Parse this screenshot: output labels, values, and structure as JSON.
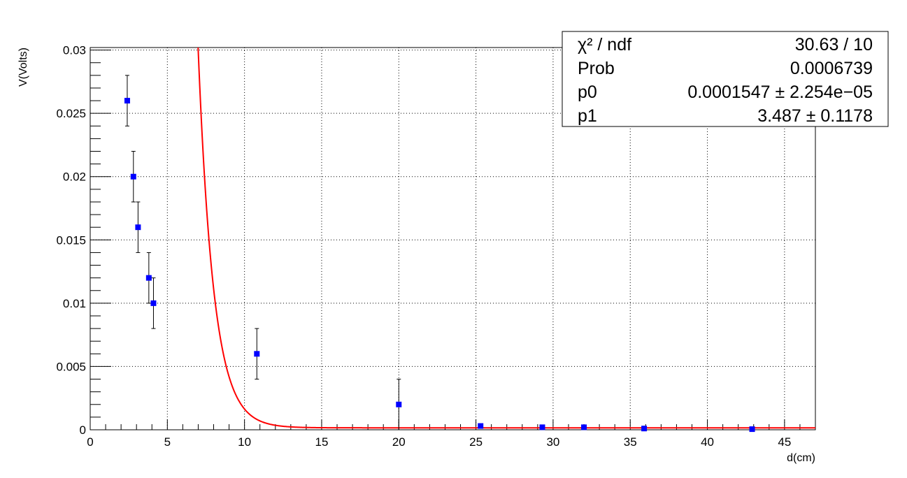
{
  "chart_data": {
    "type": "scatter",
    "title": "",
    "xlabel": "d(cm)",
    "ylabel": "V(Volts)",
    "xlim": [
      0,
      47
    ],
    "ylim": [
      0,
      0.0302
    ],
    "grid": true,
    "x_ticks": [
      0,
      5,
      10,
      15,
      20,
      25,
      30,
      35,
      40,
      45
    ],
    "x_tick_labels": [
      "0",
      "5",
      "10",
      "15",
      "20",
      "25",
      "30",
      "35",
      "40",
      "45"
    ],
    "y_ticks": [
      0,
      0.005,
      0.01,
      0.015,
      0.02,
      0.025,
      0.03
    ],
    "y_tick_labels": [
      "0",
      "0.005",
      "0.01",
      "0.015",
      "0.02",
      "0.025",
      "0.03"
    ],
    "colors": {
      "points": "#0000ff",
      "fit": "#ff0000",
      "error_bars": "#000000"
    },
    "series": [
      {
        "x": [
          2.4,
          2.8,
          3.1,
          3.8,
          4.1,
          10.8,
          20.0,
          25.3,
          29.3,
          32.0,
          35.9,
          42.9
        ],
        "y": [
          0.026,
          0.02,
          0.016,
          0.012,
          0.01,
          0.006,
          0.002,
          0.0003,
          0.0002,
          0.0002,
          0.0001,
          5e-05
        ],
        "y_err": [
          0.002,
          0.002,
          0.002,
          0.002,
          0.002,
          0.002,
          0.002,
          0,
          0,
          0,
          0,
          0
        ]
      }
    ],
    "fit": {
      "function": "p0 + exp(p1 - x)",
      "p0": 0.0001547,
      "p1": 3.487,
      "x_range": [
        2.4,
        47
      ]
    },
    "stats_box": {
      "position": "top-right",
      "rows": [
        {
          "label": "χ² / ndf",
          "value": "30.63 / 10"
        },
        {
          "label": "Prob",
          "value": "0.0006739"
        },
        {
          "label": "p0",
          "value": "0.0001547 ± 2.254e−05"
        },
        {
          "label": "p1",
          "value": "3.487 ± 0.1178"
        }
      ]
    }
  }
}
